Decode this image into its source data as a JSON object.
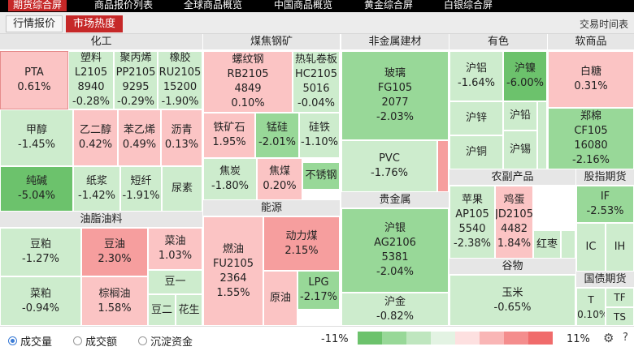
{
  "nav": {
    "items": [
      "期货综合屏",
      "商品报价列表",
      "全球商品概览",
      "中国商品概览",
      "黄金综合屏",
      "白银综合屏"
    ]
  },
  "subnav": {
    "tabs": [
      "行情报价",
      "市场热度"
    ],
    "right_link": "交易时间表"
  },
  "sections": {
    "chem": "化工",
    "coal": "煤焦钢矿",
    "nonferrous_build": "非金属建材",
    "nonferrous": "有色",
    "soft": "软商品",
    "oil": "油脂油料",
    "energy": "能源",
    "precious": "贵金属",
    "agri": "农副产品",
    "index": "股指期货",
    "grain": "谷物",
    "bond": "国债期货"
  },
  "cells": {
    "pta": [
      "PTA",
      "0.61%"
    ],
    "plastic": [
      "塑料",
      "L2105",
      "8940",
      "-0.28%"
    ],
    "pp": [
      "聚丙烯",
      "PP2105",
      "9295",
      "-0.29%"
    ],
    "rubber": [
      "橡胶",
      "RU2105",
      "15200",
      "-1.90%"
    ],
    "methanol": [
      "甲醇",
      "-1.45%"
    ],
    "eg": [
      "乙二醇",
      "0.42%"
    ],
    "styrene": [
      "苯乙烯",
      "0.49%"
    ],
    "asphalt": [
      "沥青",
      "0.13%"
    ],
    "soda": [
      "纯碱",
      "-5.04%"
    ],
    "pulp": [
      "纸浆",
      "-1.42%"
    ],
    "fiber": [
      "短纤",
      "-1.91%"
    ],
    "urea": [
      "尿素"
    ],
    "rebar": [
      "螺纹钢",
      "RB2105",
      "4849",
      "0.10%"
    ],
    "hotcoil": [
      "热轧卷板",
      "HC2105",
      "5016",
      "-0.04%"
    ],
    "iron": [
      "铁矿石",
      "1.95%"
    ],
    "mnsi": [
      "锰硅",
      "-2.01%"
    ],
    "fesi": [
      "硅铁",
      "-1.10%"
    ],
    "coke": [
      "焦炭",
      "-1.80%"
    ],
    "cokingcoal": [
      "焦煤",
      "0.20%"
    ],
    "stainless": [
      "不锈钢"
    ],
    "glass": [
      "玻璃",
      "FG105",
      "2077",
      "-2.03%"
    ],
    "pvc": [
      "PVC",
      "-1.76%"
    ],
    "al": [
      "沪铝",
      "-1.64%"
    ],
    "ni": [
      "沪镍",
      "-6.00%"
    ],
    "zn": [
      "沪锌"
    ],
    "pb": [
      "沪铅"
    ],
    "cu": [
      "沪铜"
    ],
    "sn": [
      "沪锡"
    ],
    "sugar": [
      "白糖",
      "0.31%"
    ],
    "cotton": [
      "郑棉",
      "CF105",
      "16080",
      "-2.16%"
    ],
    "soymeal": [
      "豆粕",
      "-1.27%"
    ],
    "soyoil": [
      "豆油",
      "2.30%"
    ],
    "rapeoil": [
      "菜油",
      "1.03%"
    ],
    "soy1": [
      "豆一"
    ],
    "rapemeal": [
      "菜粕",
      "-0.94%"
    ],
    "palm": [
      "棕榈油",
      "1.58%"
    ],
    "soy2": [
      "豆二"
    ],
    "peanut": [
      "花生"
    ],
    "fuel": [
      "燃油",
      "FU2105",
      "2364",
      "1.55%"
    ],
    "thermal": [
      "动力煤",
      "2.15%"
    ],
    "crude": [
      "原油"
    ],
    "lpg": [
      "LPG",
      "-2.17%"
    ],
    "silver": [
      "沪银",
      "AG2106",
      "5381",
      "-2.04%"
    ],
    "gold": [
      "沪金",
      "-0.82%"
    ],
    "apple": [
      "苹果",
      "AP105",
      "5540",
      "-2.38%"
    ],
    "egg": [
      "鸡蛋",
      "JD2105",
      "4482",
      "1.84%"
    ],
    "jujube": [
      "红枣"
    ],
    "if": [
      "IF",
      "-2.53%"
    ],
    "ic": [
      "IC"
    ],
    "ih": [
      "IH"
    ],
    "corn": [
      "玉米",
      "-0.65%"
    ],
    "t": [
      "T",
      "-0.10%"
    ],
    "tf": [
      "TF"
    ],
    "ts": [
      "TS"
    ]
  },
  "bottom": {
    "options": [
      "成交量",
      "成交额",
      "沉淀资金"
    ],
    "selected": 0,
    "min_label": "-11%",
    "max_label": "11%",
    "legend_colors": [
      "#6cc26c",
      "#98d898",
      "#bfe6bf",
      "#e3f3e3",
      "#fde0e0",
      "#f9b6b6",
      "#f48d8d",
      "#f06b6b"
    ]
  }
}
